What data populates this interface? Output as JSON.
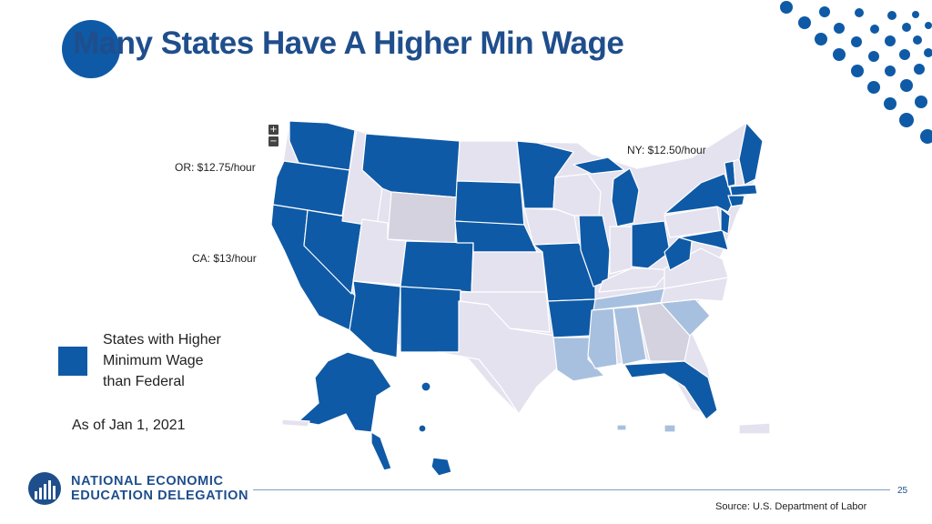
{
  "slide": {
    "title": "Many States Have A Higher Min Wage",
    "page_number": "25",
    "source": "Source: U.S. Department of Labor",
    "as_of": "As of Jan 1, 2021"
  },
  "map": {
    "zoom_in": "+",
    "zoom_out": "−",
    "callouts": {
      "or": "OR: $12.75/hour",
      "ca": "CA: $13/hour",
      "ny": "NY: $12.50/hour"
    },
    "legend": {
      "line1": "States with Higher",
      "line2": "Minimum Wage",
      "line3": "than Federal"
    },
    "colors": {
      "higher": "#0f5aa6",
      "federal": "#e4e2ef",
      "medium": "#a8c0df",
      "gray": "#d4d2df"
    }
  },
  "logo": {
    "line1": "NATIONAL ECONOMIC",
    "line2": "EDUCATION DELEGATION"
  }
}
